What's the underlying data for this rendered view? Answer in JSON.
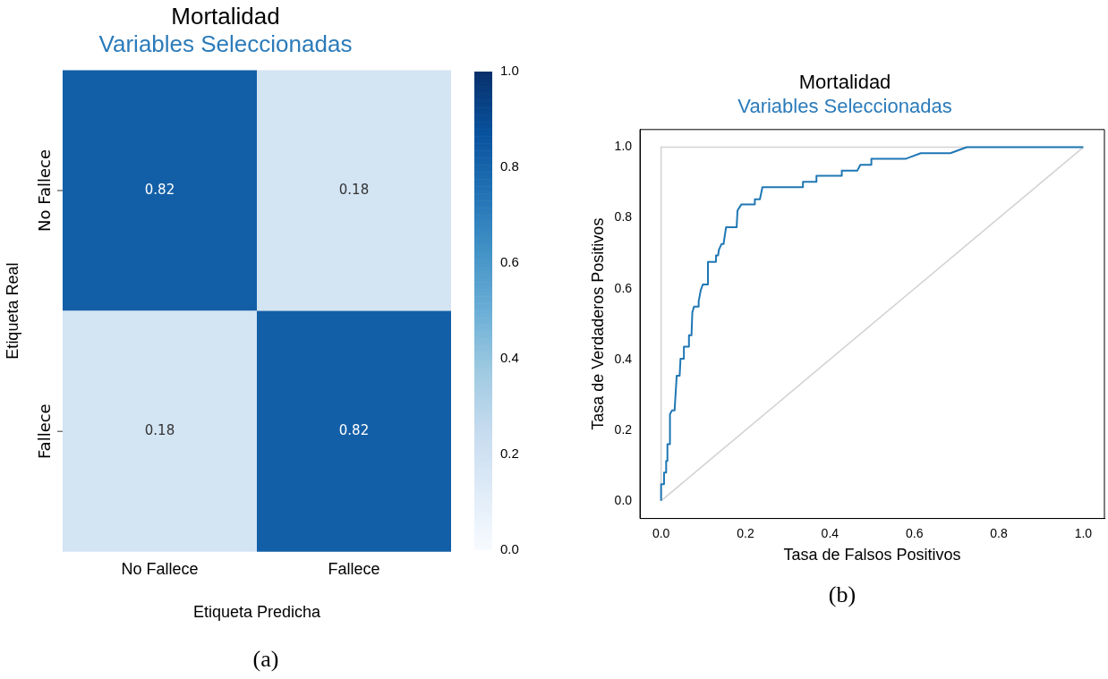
{
  "chart_data": [
    {
      "type": "heatmap",
      "title": "Mortalidad",
      "subtitle": "Variables Seleccionadas",
      "xlabel": "Etiqueta Predicha",
      "ylabel": "Etiqueta Real",
      "categories": [
        "No Fallece",
        "Fallece"
      ],
      "y_categories": [
        "No Fallece",
        "Fallece"
      ],
      "cells": [
        [
          0.82,
          0.18
        ],
        [
          0.18,
          0.82
        ]
      ],
      "data_labels": true,
      "clim": [
        0,
        1
      ],
      "cticks": [
        {
          "value": 0,
          "label": "0.0"
        },
        {
          "value": 0.2,
          "label": "0.2"
        },
        {
          "value": 0.4,
          "label": "0.4"
        },
        {
          "value": 0.6,
          "label": "0.6"
        },
        {
          "value": 0.8,
          "label": "0.8"
        },
        {
          "value": 1,
          "label": "1.0"
        }
      ],
      "annotations": [
        "(a)"
      ]
    },
    {
      "type": "line",
      "title": "Mortalidad",
      "subtitle": "Variables Seleccionadas",
      "xlabel": "Tasa de Falsos Positivos",
      "ylabel": "Tasa de Verdaderos Positivos",
      "xlim": [
        -0.05,
        1.05
      ],
      "ylim": [
        -0.05,
        1.05
      ],
      "xticks": [
        {
          "value": 0,
          "label": "0.0"
        },
        {
          "value": 0.2,
          "label": "0.2"
        },
        {
          "value": 0.4,
          "label": "0.4"
        },
        {
          "value": 0.6,
          "label": "0.6"
        },
        {
          "value": 0.8,
          "label": "0.8"
        },
        {
          "value": 1,
          "label": "1.0"
        }
      ],
      "yticks": [
        {
          "value": 0,
          "label": "0.0"
        },
        {
          "value": 0.2,
          "label": "0.2"
        },
        {
          "value": 0.4,
          "label": "0.4"
        },
        {
          "value": 0.6,
          "label": "0.6"
        },
        {
          "value": 0.8,
          "label": "0.8"
        },
        {
          "value": 1,
          "label": "1.0"
        }
      ],
      "grid": false,
      "legend": false,
      "marker": "none",
      "line_style": "solid",
      "series": [
        {
          "color": "#d3d3d3",
          "x": [
            0,
            1
          ],
          "values": [
            0,
            1
          ]
        },
        {
          "color": "#d3d3d3",
          "x": [
            0,
            0,
            1
          ],
          "values": [
            0,
            1,
            1
          ]
        },
        {
          "color": "#1f77b4",
          "x": [
            0,
            0,
            0.007,
            0.007,
            0.012,
            0.012,
            0.015,
            0.015,
            0.021,
            0.021,
            0.026,
            0.032,
            0.037,
            0.044,
            0.046,
            0.054,
            0.054,
            0.066,
            0.066,
            0.072,
            0.074,
            0.078,
            0.089,
            0.089,
            0.094,
            0.099,
            0.111,
            0.111,
            0.13,
            0.13,
            0.135,
            0.137,
            0.143,
            0.148,
            0.15,
            0.154,
            0.179,
            0.181,
            0.19,
            0.222,
            0.222,
            0.234,
            0.24,
            0.336,
            0.336,
            0.368,
            0.368,
            0.428,
            0.428,
            0.465,
            0.472,
            0.498,
            0.498,
            0.579,
            0.615,
            0.685,
            0.724,
            1
          ],
          "values": [
            0,
            0.047,
            0.047,
            0.08,
            0.08,
            0.113,
            0.113,
            0.16,
            0.16,
            0.245,
            0.256,
            0.256,
            0.354,
            0.354,
            0.402,
            0.402,
            0.436,
            0.436,
            0.468,
            0.468,
            0.533,
            0.549,
            0.549,
            0.564,
            0.596,
            0.612,
            0.612,
            0.676,
            0.676,
            0.694,
            0.694,
            0.71,
            0.726,
            0.726,
            0.743,
            0.774,
            0.774,
            0.821,
            0.838,
            0.838,
            0.853,
            0.853,
            0.887,
            0.887,
            0.902,
            0.902,
            0.919,
            0.919,
            0.934,
            0.934,
            0.95,
            0.95,
            0.967,
            0.967,
            0.983,
            0.983,
            1,
            1
          ]
        }
      ],
      "annotations": [
        "(b)"
      ]
    }
  ]
}
